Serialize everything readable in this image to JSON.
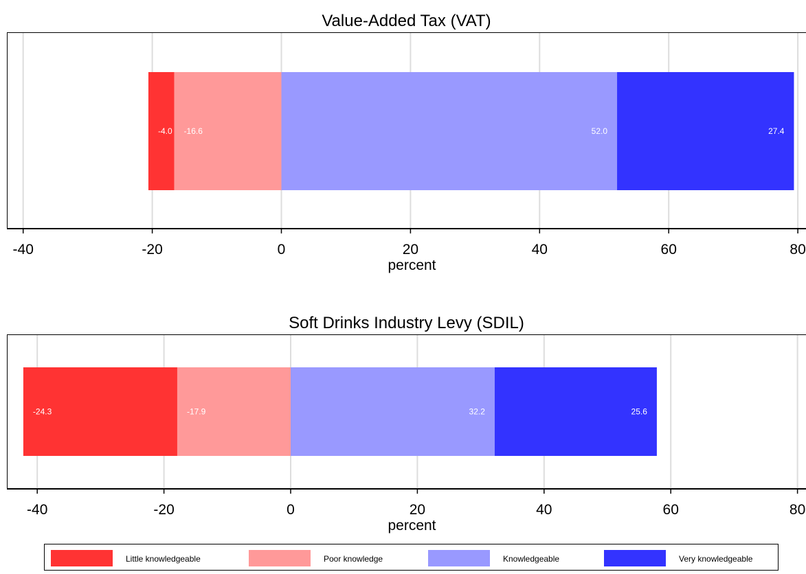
{
  "chart_data": [
    {
      "type": "bar",
      "orientation": "horizontal",
      "stacked": "diverging",
      "title": "Value-Added Tax (VAT)",
      "xlabel": "percent",
      "xlim": [
        -42,
        80
      ],
      "xticks": [
        -40,
        -20,
        0,
        20,
        40,
        60,
        80
      ],
      "tick_labels": [
        "-40",
        "-20",
        "0",
        "20",
        "40",
        "60",
        "80"
      ],
      "grid": true,
      "series": [
        {
          "name": "Little knowledgeable",
          "value": -4.0,
          "label": "-4.0"
        },
        {
          "name": "Poor knowledge",
          "value": -16.6,
          "label": "-16.6"
        },
        {
          "name": "Knowledgeable",
          "value": 52.0,
          "label": "52.0"
        },
        {
          "name": "Very knowledgeable",
          "value": 27.4,
          "label": "27.4"
        }
      ]
    },
    {
      "type": "bar",
      "orientation": "horizontal",
      "stacked": "diverging",
      "title": "Soft Drinks Industry Levy (SDIL)",
      "xlabel": "percent",
      "xlim": [
        -45,
        80
      ],
      "xticks": [
        -40,
        -20,
        0,
        20,
        40,
        60,
        80
      ],
      "tick_labels": [
        "-40",
        "-20",
        "0",
        "20",
        "40",
        "60",
        "80"
      ],
      "grid": true,
      "series": [
        {
          "name": "Little knowledgeable",
          "value": -24.3,
          "label": "-24.3"
        },
        {
          "name": "Poor knowledge",
          "value": -17.9,
          "label": "-17.9"
        },
        {
          "name": "Knowledgeable",
          "value": 32.2,
          "label": "32.2"
        },
        {
          "name": "Very knowledgeable",
          "value": 25.6,
          "label": "25.6"
        }
      ]
    }
  ],
  "legend": {
    "placement": "bottom",
    "items": [
      {
        "label": "Little knowledgeable",
        "color": "#ff3333"
      },
      {
        "label": "Poor knowledge",
        "color": "#ff9999"
      },
      {
        "label": "Knowledgeable",
        "color": "#9999ff"
      },
      {
        "label": "Very knowledgeable",
        "color": "#3333ff"
      }
    ]
  },
  "colors": {
    "little": "#ff3333",
    "poor": "#ff9999",
    "knowledgeable": "#9999ff",
    "very": "#3333ff",
    "grid": "#dddddd",
    "value_label": "#ffffff"
  }
}
